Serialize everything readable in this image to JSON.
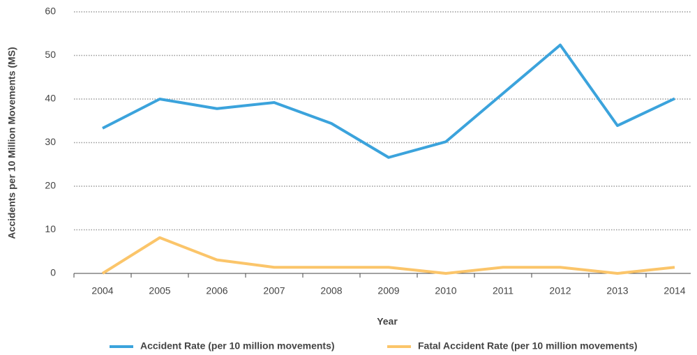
{
  "chart_data": {
    "type": "line",
    "x_label": "Year",
    "y_label": "Accidents per 10 Million Movements (MS)",
    "categories": [
      "2004",
      "2005",
      "2006",
      "2007",
      "2008",
      "2009",
      "2010",
      "2011",
      "2012",
      "2013",
      "2014"
    ],
    "series": [
      {
        "name": "Accident Rate (per 10 million movements)",
        "color": "#3ba3dc",
        "values": [
          33.3,
          40,
          37.8,
          39.2,
          34.4,
          26.6,
          30.2,
          41.3,
          52.4,
          33.9,
          40.1
        ]
      },
      {
        "name": "Fatal Accident Rate (per 10 million movements)",
        "color": "#fbc56a",
        "values": [
          0,
          8.2,
          3.1,
          1.4,
          1.4,
          1.4,
          0,
          1.4,
          1.4,
          0,
          1.4
        ]
      }
    ],
    "ylim": [
      0,
      60
    ],
    "yticks": [
      0,
      10,
      20,
      30,
      40,
      50,
      60
    ],
    "grid": true
  }
}
